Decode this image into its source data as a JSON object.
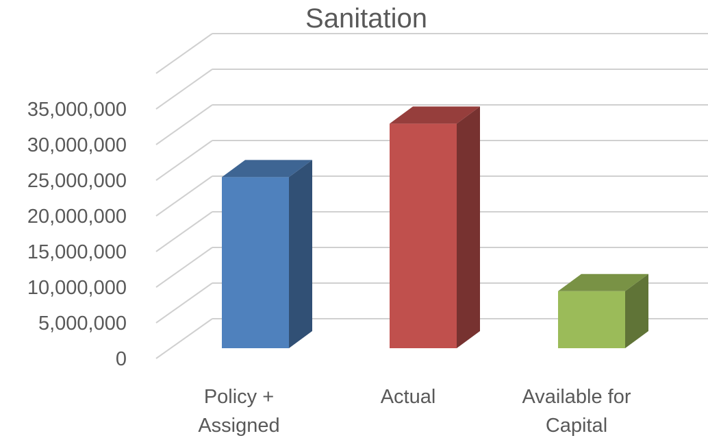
{
  "chart_data": {
    "type": "bar",
    "title": "Sanitation",
    "xlabel": "",
    "ylabel": "",
    "categories": [
      [
        "Policy +",
        "Assigned"
      ],
      [
        "Actual"
      ],
      [
        "Available for",
        "Capital"
      ]
    ],
    "values": [
      24000000,
      31500000,
      8000000
    ],
    "colors": [
      "#4F81BD",
      "#C0504D",
      "#9BBB59"
    ],
    "ylim": [
      0,
      40000000
    ],
    "y_ticks": [
      {
        "value": 0,
        "label": "0"
      },
      {
        "value": 5000000,
        "label": "5,000,000"
      },
      {
        "value": 10000000,
        "label": "10,000,000"
      },
      {
        "value": 15000000,
        "label": "15,000,000"
      },
      {
        "value": 20000000,
        "label": "20,000,000"
      },
      {
        "value": 25000000,
        "label": "25,000,000"
      },
      {
        "value": 30000000,
        "label": "30,000,000"
      },
      {
        "value": 35000000,
        "label": "35,000,000"
      }
    ],
    "grid": true,
    "legend": "none",
    "style": "3d-column"
  }
}
